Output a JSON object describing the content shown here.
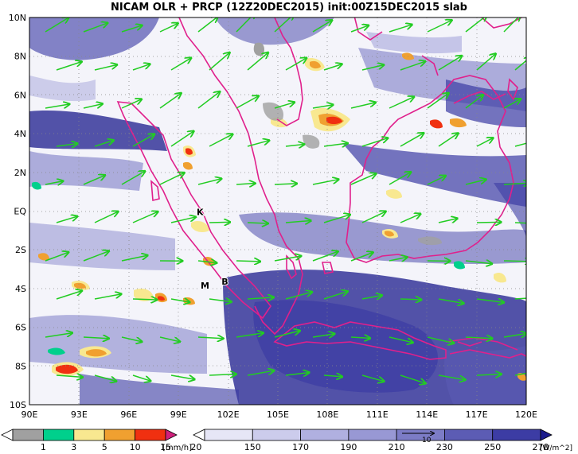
{
  "title": "NICAM OLR + PRCP (12Z20DEC2015) init:00Z15DEC2015 slab",
  "map": {
    "lon_range": [
      90,
      120
    ],
    "lat_range": [
      -10,
      10
    ],
    "x_ticks": [
      "90E",
      "93E",
      "96E",
      "99E",
      "102E",
      "105E",
      "108E",
      "111E",
      "114E",
      "117E",
      "120E"
    ],
    "y_ticks": [
      "10N",
      "8N",
      "6N",
      "4N",
      "2N",
      "EQ",
      "2S",
      "4S",
      "6S",
      "8S",
      "10S"
    ],
    "grid": "dotted",
    "coastline_color": "#e0208c",
    "wind_vector_color": "#22cc22",
    "place_labels": [
      {
        "text": "K",
        "lon": 100.3,
        "lat": -0.2
      },
      {
        "text": "M",
        "lon": 100.6,
        "lat": -4.0
      },
      {
        "text": "B",
        "lon": 101.8,
        "lat": -3.8
      }
    ]
  },
  "precip_legend": {
    "unit": "[mm/h]",
    "labels": [
      "1",
      "3",
      "5",
      "10",
      "15",
      "20"
    ],
    "colors": [
      "#ffffff",
      "#a0a0a0",
      "#00d08c",
      "#f8e890",
      "#f0a030",
      "#f03010",
      "#d0207c"
    ]
  },
  "olr_legend": {
    "unit": "[W/m^2]",
    "labels": [
      "150",
      "170",
      "190",
      "210",
      "230",
      "250",
      "270",
      "290"
    ],
    "colors": [
      "#ffffff",
      "#e6e6f6",
      "#ccccec",
      "#b0b0e0",
      "#9898d4",
      "#7c7cc6",
      "#5c5cb4",
      "#3c3ca4",
      "#1c1c8c"
    ],
    "reference_vector": "10"
  }
}
